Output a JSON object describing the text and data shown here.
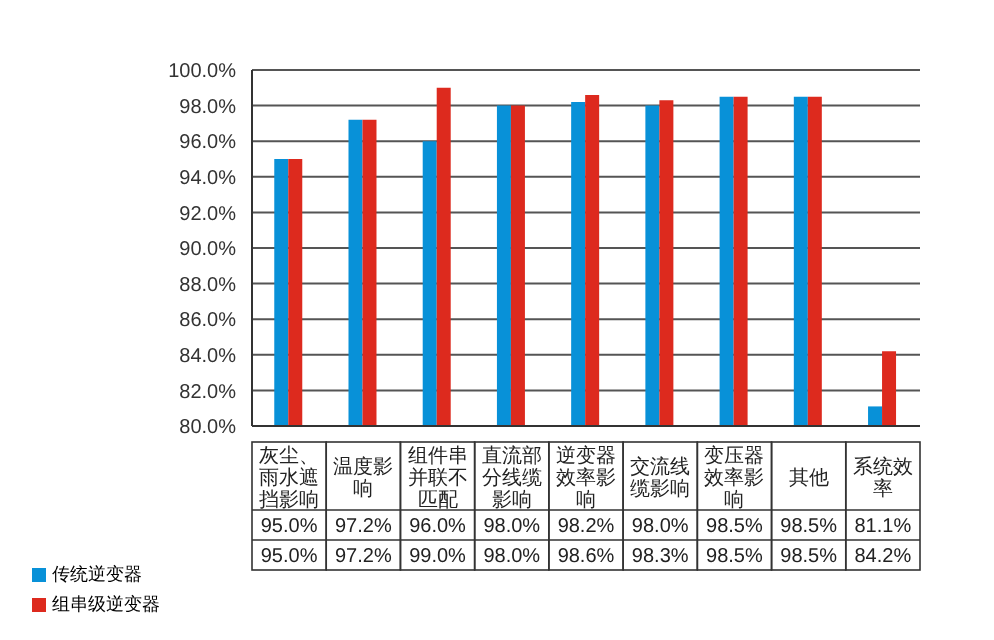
{
  "chart_data": {
    "type": "bar",
    "categories": [
      "灰尘、雨水遮挡影响",
      "温度影响",
      "组件串并联不匹配",
      "直流部分线缆影响",
      "逆变器效率影响",
      "交流线缆影响",
      "变压器效率影响",
      "其他",
      "系统效率"
    ],
    "series": [
      {
        "name": "传统逆变器",
        "color": "#0891d8",
        "values": [
          95.0,
          97.2,
          96.0,
          98.0,
          98.2,
          98.0,
          98.5,
          98.5,
          81.1
        ],
        "value_labels": [
          "95.0%",
          "97.2%",
          "96.0%",
          "98.0%",
          "98.2%",
          "98.0%",
          "98.5%",
          "98.5%",
          "81.1%"
        ]
      },
      {
        "name": "组串级逆变器",
        "color": "#dd2a1e",
        "values": [
          95.0,
          97.2,
          99.0,
          98.0,
          98.6,
          98.3,
          98.5,
          98.5,
          84.2
        ],
        "value_labels": [
          "95.0%",
          "97.2%",
          "99.0%",
          "98.0%",
          "98.6%",
          "98.3%",
          "98.5%",
          "98.5%",
          "84.2%"
        ]
      }
    ],
    "ylim": [
      80,
      100
    ],
    "yticks": [
      {
        "value": 80,
        "label": "80.0%"
      },
      {
        "value": 82,
        "label": "82.0%"
      },
      {
        "value": 84,
        "label": "84.0%"
      },
      {
        "value": 86,
        "label": "86.0%"
      },
      {
        "value": 88,
        "label": "88.0%"
      },
      {
        "value": 90,
        "label": "90.0%"
      },
      {
        "value": 92,
        "label": "92.0%"
      },
      {
        "value": 94,
        "label": "94.0%"
      },
      {
        "value": 96,
        "label": "96.0%"
      },
      {
        "value": 98,
        "label": "98.0%"
      },
      {
        "value": 100,
        "label": "100.0%"
      }
    ],
    "grid": "y",
    "legend": "bottom left"
  }
}
